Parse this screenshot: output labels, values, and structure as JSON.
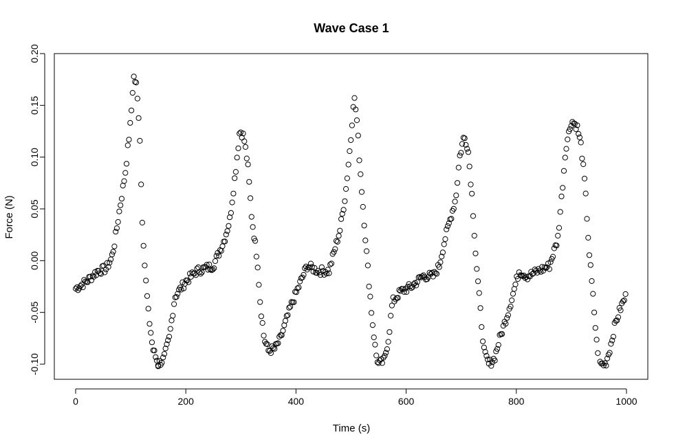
{
  "chart_data": {
    "type": "scatter",
    "title": "Wave Case 1",
    "xlabel": "Time (s)",
    "ylabel": "Force (N)",
    "xlim": [
      -20,
      1000
    ],
    "ylim": [
      -0.11,
      0.2
    ],
    "xticks": [
      0,
      200,
      400,
      600,
      800,
      1000
    ],
    "xtick_labels": [
      "0",
      "200",
      "400",
      "600",
      "800",
      "1000"
    ],
    "yticks": [
      -0.1,
      -0.05,
      0.0,
      0.05,
      0.1,
      0.15,
      0.2
    ],
    "ytick_labels": [
      "-0.10",
      "-0.05",
      "0.00",
      "0.05",
      "0.10",
      "0.15",
      "0.20"
    ],
    "marker": "open-circle",
    "grid": false,
    "legend": "none",
    "cycles": [
      {
        "x_start": 0,
        "x_end": 150,
        "keys": [
          [
            0,
            -0.027
          ],
          [
            20,
            -0.02
          ],
          [
            40,
            -0.01
          ],
          [
            55,
            -0.008
          ],
          [
            65,
            0.002
          ],
          [
            70,
            0.015
          ],
          [
            80,
            0.05
          ],
          [
            90,
            0.085
          ],
          [
            100,
            0.135
          ],
          [
            105,
            0.178
          ],
          [
            110,
            0.17
          ],
          [
            113,
            0.15
          ],
          [
            116,
            0.13
          ],
          [
            120,
            0.05
          ],
          [
            126,
            -0.01
          ],
          [
            132,
            -0.05
          ],
          [
            140,
            -0.085
          ],
          [
            150,
            -0.1
          ]
        ]
      },
      {
        "x_start": 150,
        "x_end": 350,
        "keys": [
          [
            150,
            -0.1
          ],
          [
            160,
            -0.095
          ],
          [
            170,
            -0.075
          ],
          [
            180,
            -0.035
          ],
          [
            200,
            -0.02
          ],
          [
            220,
            -0.01
          ],
          [
            250,
            -0.005
          ],
          [
            270,
            0.02
          ],
          [
            280,
            0.04
          ],
          [
            290,
            0.085
          ],
          [
            298,
            0.126
          ],
          [
            305,
            0.12
          ],
          [
            312,
            0.095
          ],
          [
            320,
            0.04
          ],
          [
            330,
            0.0
          ],
          [
            335,
            -0.04
          ],
          [
            342,
            -0.075
          ],
          [
            350,
            -0.087
          ]
        ]
      },
      {
        "x_start": 350,
        "x_end": 550,
        "keys": [
          [
            350,
            -0.087
          ],
          [
            362,
            -0.085
          ],
          [
            372,
            -0.075
          ],
          [
            390,
            -0.045
          ],
          [
            405,
            -0.025
          ],
          [
            420,
            -0.005
          ],
          [
            440,
            -0.01
          ],
          [
            460,
            -0.01
          ],
          [
            470,
            0.01
          ],
          [
            480,
            0.03
          ],
          [
            490,
            0.065
          ],
          [
            500,
            0.12
          ],
          [
            505,
            0.16
          ],
          [
            510,
            0.14
          ],
          [
            515,
            0.1
          ],
          [
            522,
            0.05
          ],
          [
            530,
            -0.005
          ],
          [
            538,
            -0.055
          ],
          [
            545,
            -0.09
          ],
          [
            550,
            -0.1
          ]
        ]
      },
      {
        "x_start": 550,
        "x_end": 750,
        "keys": [
          [
            550,
            -0.1
          ],
          [
            560,
            -0.097
          ],
          [
            568,
            -0.075
          ],
          [
            575,
            -0.04
          ],
          [
            590,
            -0.03
          ],
          [
            610,
            -0.025
          ],
          [
            630,
            -0.015
          ],
          [
            650,
            -0.015
          ],
          [
            660,
            -0.005
          ],
          [
            670,
            0.02
          ],
          [
            680,
            0.04
          ],
          [
            690,
            0.06
          ],
          [
            697,
            0.1
          ],
          [
            705,
            0.12
          ],
          [
            712,
            0.11
          ],
          [
            720,
            0.06
          ],
          [
            727,
            0.0
          ],
          [
            735,
            -0.05
          ],
          [
            742,
            -0.09
          ],
          [
            750,
            -0.1
          ]
        ]
      },
      {
        "x_start": 750,
        "x_end": 950,
        "keys": [
          [
            750,
            -0.1
          ],
          [
            760,
            -0.095
          ],
          [
            770,
            -0.075
          ],
          [
            785,
            -0.05
          ],
          [
            795,
            -0.03
          ],
          [
            805,
            -0.01
          ],
          [
            820,
            -0.015
          ],
          [
            840,
            -0.01
          ],
          [
            860,
            -0.005
          ],
          [
            875,
            0.02
          ],
          [
            882,
            0.06
          ],
          [
            890,
            0.11
          ],
          [
            900,
            0.135
          ],
          [
            910,
            0.13
          ],
          [
            918,
            0.11
          ],
          [
            925,
            0.07
          ],
          [
            932,
            0.01
          ],
          [
            940,
            -0.04
          ],
          [
            946,
            -0.08
          ],
          [
            952,
            -0.1
          ]
        ]
      },
      {
        "x_start": 952,
        "x_end": 1000,
        "keys": [
          [
            952,
            -0.1
          ],
          [
            962,
            -0.1
          ],
          [
            970,
            -0.085
          ],
          [
            980,
            -0.06
          ],
          [
            990,
            -0.045
          ],
          [
            998,
            -0.035
          ]
        ]
      }
    ],
    "point_spacing": 2.2
  }
}
